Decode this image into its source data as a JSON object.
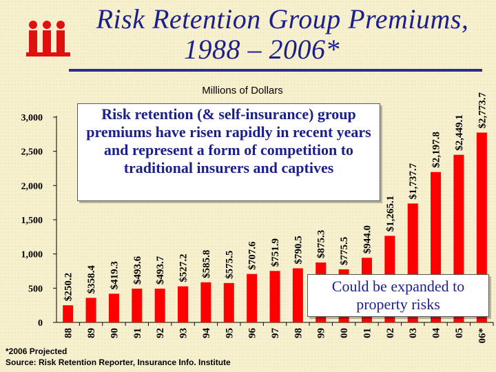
{
  "title": {
    "line1": "Risk Retention Group Premiums,",
    "line2": "1988 – 2006*"
  },
  "logo_text": "iii",
  "colors": {
    "title": "#1a1f8c",
    "bar": "#ff0000",
    "logo": "#e01010",
    "rule": "#2f2a8f"
  },
  "callouts": {
    "main": "Risk retention (& self-insurance) group premiums have risen rapidly in recent years and represent a form of competition to traditional insurers and captives",
    "property": "Could be expanded to property risks"
  },
  "footnote": {
    "projection": "*2006 Projected",
    "source": "Source: Risk Retention Reporter, Insurance Info. Institute"
  },
  "chart_data": {
    "type": "bar",
    "title": "Millions of Dollars",
    "xlabel": "",
    "ylabel": "",
    "categories": [
      "88",
      "89",
      "90",
      "91",
      "92",
      "93",
      "94",
      "95",
      "96",
      "97",
      "98",
      "99",
      "00",
      "01",
      "02",
      "03",
      "04",
      "05",
      "06*"
    ],
    "values": [
      250.2,
      358.4,
      419.3,
      493.6,
      493.7,
      527.2,
      585.8,
      575.5,
      707.6,
      751.9,
      790.5,
      875.3,
      775.5,
      944.0,
      1265.1,
      1737.7,
      2197.8,
      2449.1,
      2773.7
    ],
    "data_labels": [
      "$250.2",
      "$358.4",
      "$419.3",
      "$493.6",
      "$493.7",
      "$527.2",
      "$585.8",
      "$575.5",
      "$707.6",
      "$751.9",
      "$790.5",
      "$875.3",
      "$775.5",
      "$944.0",
      "$1,265.1",
      "$1,737.7",
      "$2,197.8",
      "$2,449.1",
      "$2,773.7"
    ],
    "yticks": [
      0,
      500,
      1000,
      1500,
      2000,
      2500,
      3000
    ],
    "ytick_labels": [
      "0",
      "500",
      "1,000",
      "1,500",
      "2,000",
      "2,500",
      "3,000"
    ],
    "ylim": [
      0,
      3000
    ],
    "grid": false,
    "legend": "none"
  }
}
